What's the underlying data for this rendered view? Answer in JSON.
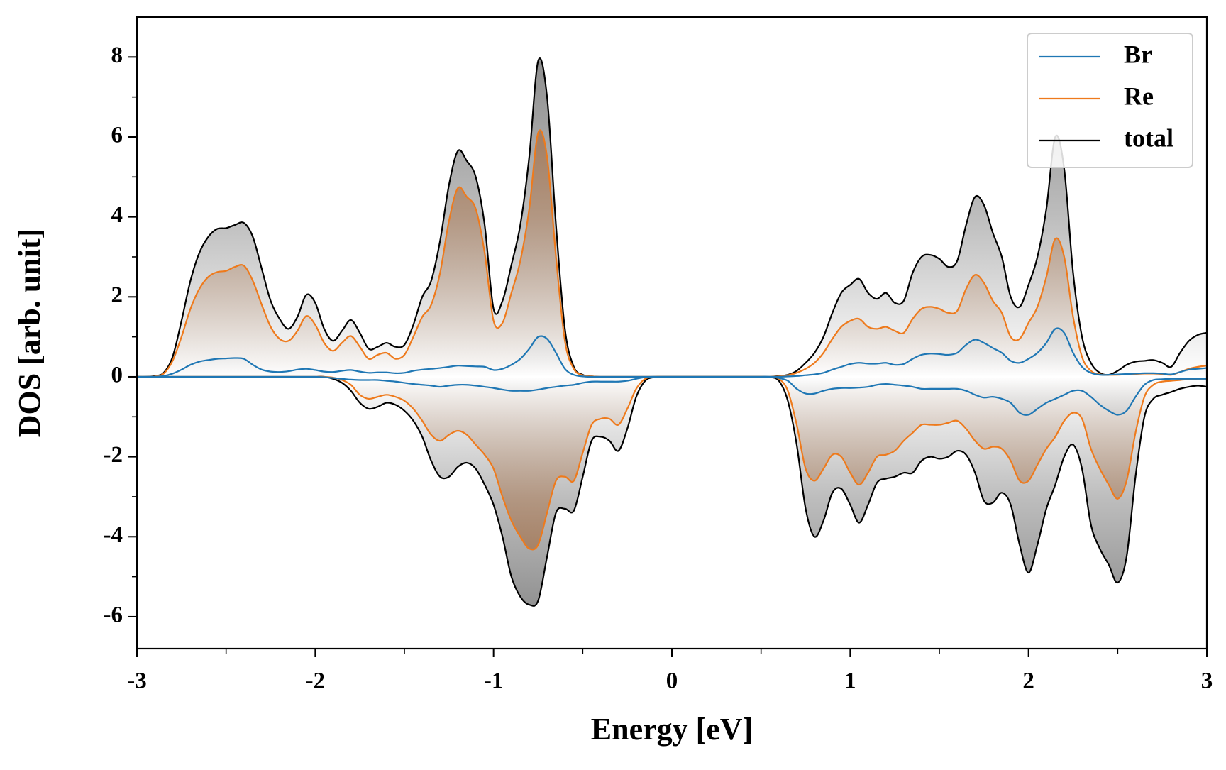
{
  "chart_data": {
    "type": "line",
    "xlabel": "Energy [eV]",
    "ylabel": "DOS [arb. unit]",
    "xlim": [
      -3,
      3
    ],
    "ylim": [
      -6.8,
      9
    ],
    "xticks": [
      -3,
      -2,
      -1,
      0,
      1,
      2,
      3
    ],
    "yticks": [
      -6,
      -4,
      -2,
      0,
      2,
      4,
      6,
      8
    ],
    "xminorticks": [
      -2.5,
      -1.5,
      -0.5,
      0.5,
      1.5,
      2.5
    ],
    "yminorticks": [
      -5,
      -3,
      -1,
      1,
      3,
      5,
      7
    ],
    "legend": "upper right",
    "fill": true,
    "x": [
      -3,
      -2.95,
      -2.9,
      -2.85,
      -2.8,
      -2.75,
      -2.7,
      -2.65,
      -2.6,
      -2.55,
      -2.5,
      -2.45,
      -2.4,
      -2.35,
      -2.3,
      -2.25,
      -2.2,
      -2.15,
      -2.1,
      -2.05,
      -2,
      -1.95,
      -1.9,
      -1.85,
      -1.8,
      -1.75,
      -1.7,
      -1.65,
      -1.6,
      -1.55,
      -1.5,
      -1.45,
      -1.4,
      -1.35,
      -1.3,
      -1.25,
      -1.2,
      -1.15,
      -1.1,
      -1.05,
      -1,
      -0.95,
      -0.9,
      -0.85,
      -0.8,
      -0.75,
      -0.7,
      -0.65,
      -0.6,
      -0.55,
      -0.5,
      -0.45,
      -0.4,
      -0.35,
      -0.3,
      -0.25,
      -0.2,
      -0.15,
      -0.1,
      -0.05,
      0,
      0.05,
      0.1,
      0.15,
      0.2,
      0.25,
      0.3,
      0.35,
      0.4,
      0.45,
      0.5,
      0.55,
      0.6,
      0.65,
      0.7,
      0.75,
      0.8,
      0.85,
      0.9,
      0.95,
      1,
      1.05,
      1.1,
      1.15,
      1.2,
      1.25,
      1.3,
      1.35,
      1.4,
      1.45,
      1.5,
      1.55,
      1.6,
      1.65,
      1.7,
      1.75,
      1.8,
      1.85,
      1.9,
      1.95,
      2,
      2.05,
      2.1,
      2.15,
      2.2,
      2.25,
      2.3,
      2.35,
      2.4,
      2.45,
      2.5,
      2.55,
      2.6,
      2.65,
      2.7,
      2.75,
      2.8,
      2.85,
      2.9,
      2.95,
      3
    ],
    "series": [
      {
        "name": "Br",
        "color": "#1f77b4",
        "fill_color": "#7fa6c4",
        "values": [
          0,
          0,
          0,
          0.02,
          0.08,
          0.18,
          0.3,
          0.38,
          0.42,
          0.45,
          0.46,
          0.47,
          0.45,
          0.3,
          0.18,
          0.13,
          0.12,
          0.14,
          0.18,
          0.2,
          0.17,
          0.13,
          0.12,
          0.15,
          0.17,
          0.13,
          0.1,
          0.11,
          0.11,
          0.09,
          0.1,
          0.15,
          0.18,
          0.2,
          0.22,
          0.25,
          0.28,
          0.27,
          0.26,
          0.25,
          0.17,
          0.2,
          0.3,
          0.45,
          0.7,
          1.0,
          0.95,
          0.6,
          0.2,
          0.05,
          0.01,
          0,
          0,
          0,
          0,
          0,
          0,
          0,
          0,
          0,
          0,
          0,
          0,
          0,
          0,
          0,
          0,
          0,
          0,
          0,
          0,
          0,
          0,
          0.01,
          0.02,
          0.04,
          0.06,
          0.1,
          0.18,
          0.25,
          0.32,
          0.35,
          0.33,
          0.33,
          0.35,
          0.3,
          0.32,
          0.45,
          0.55,
          0.58,
          0.57,
          0.55,
          0.6,
          0.8,
          0.93,
          0.85,
          0.72,
          0.6,
          0.4,
          0.35,
          0.45,
          0.6,
          0.85,
          1.2,
          1.1,
          0.6,
          0.25,
          0.1,
          0.05,
          0.05,
          0.06,
          0.07,
          0.08,
          0.09,
          0.09,
          0.08,
          0.06,
          0.12,
          0.18,
          0.2,
          0.22
        ],
        "values_down": [
          0,
          0,
          0,
          0,
          0,
          0,
          0,
          0,
          0,
          0,
          0,
          0,
          0,
          0,
          0,
          0,
          0,
          0,
          0,
          0,
          0,
          -0.01,
          -0.03,
          -0.05,
          -0.07,
          -0.08,
          -0.08,
          -0.08,
          -0.1,
          -0.12,
          -0.15,
          -0.18,
          -0.2,
          -0.22,
          -0.25,
          -0.22,
          -0.2,
          -0.2,
          -0.22,
          -0.25,
          -0.28,
          -0.32,
          -0.35,
          -0.35,
          -0.35,
          -0.32,
          -0.28,
          -0.25,
          -0.22,
          -0.2,
          -0.15,
          -0.12,
          -0.12,
          -0.12,
          -0.12,
          -0.1,
          -0.05,
          -0.01,
          0,
          0,
          0,
          0,
          0,
          0,
          0,
          0,
          0,
          0,
          0,
          0,
          0,
          0,
          -0.03,
          -0.1,
          -0.3,
          -0.42,
          -0.42,
          -0.35,
          -0.3,
          -0.28,
          -0.28,
          -0.27,
          -0.25,
          -0.2,
          -0.18,
          -0.2,
          -0.22,
          -0.25,
          -0.3,
          -0.3,
          -0.3,
          -0.3,
          -0.3,
          -0.35,
          -0.45,
          -0.52,
          -0.5,
          -0.55,
          -0.65,
          -0.9,
          -0.95,
          -0.8,
          -0.65,
          -0.55,
          -0.45,
          -0.35,
          -0.35,
          -0.5,
          -0.7,
          -0.85,
          -0.95,
          -0.85,
          -0.5,
          -0.2,
          -0.08,
          -0.06,
          -0.05,
          -0.05,
          -0.05,
          -0.05,
          -0.05
        ]
      },
      {
        "name": "Re",
        "color": "#ee7a1c",
        "fill_color": "#a5683a",
        "values": [
          0,
          0,
          0.01,
          0.08,
          0.4,
          1.0,
          1.7,
          2.2,
          2.5,
          2.62,
          2.65,
          2.75,
          2.78,
          2.4,
          1.8,
          1.25,
          0.95,
          0.9,
          1.15,
          1.52,
          1.3,
          0.85,
          0.65,
          0.85,
          1.02,
          0.75,
          0.45,
          0.55,
          0.6,
          0.45,
          0.55,
          1.0,
          1.5,
          1.8,
          2.6,
          3.9,
          4.72,
          4.5,
          4.2,
          3.1,
          1.4,
          1.35,
          2.1,
          2.9,
          4.2,
          6.1,
          5.5,
          3.0,
          0.9,
          0.2,
          0.04,
          0.01,
          0,
          0,
          0,
          0,
          0,
          0,
          0,
          0,
          0,
          0,
          0,
          0,
          0,
          0,
          0,
          0,
          0,
          0,
          0,
          0,
          0.01,
          0.04,
          0.1,
          0.2,
          0.35,
          0.6,
          0.95,
          1.25,
          1.4,
          1.45,
          1.25,
          1.2,
          1.25,
          1.15,
          1.1,
          1.45,
          1.7,
          1.75,
          1.7,
          1.6,
          1.65,
          2.2,
          2.55,
          2.35,
          1.9,
          1.6,
          1.0,
          0.95,
          1.35,
          1.75,
          2.5,
          3.45,
          3.0,
          1.5,
          0.5,
          0.15,
          0.06,
          0.05,
          0.05,
          0.06,
          0.07,
          0.08,
          0.08,
          0.07,
          0.05,
          0.12,
          0.2,
          0.25,
          0.28
        ],
        "values_down": [
          0,
          0,
          0,
          0,
          0,
          0,
          0,
          0,
          0,
          0,
          0,
          0,
          0,
          0,
          0,
          0,
          0,
          0,
          0,
          0,
          0,
          0,
          -0.02,
          -0.08,
          -0.2,
          -0.45,
          -0.55,
          -0.5,
          -0.45,
          -0.5,
          -0.6,
          -0.8,
          -1.1,
          -1.45,
          -1.6,
          -1.45,
          -1.35,
          -1.45,
          -1.7,
          -1.95,
          -2.3,
          -3.0,
          -3.6,
          -4.0,
          -4.3,
          -4.2,
          -3.4,
          -2.6,
          -2.5,
          -2.6,
          -1.9,
          -1.2,
          -1.05,
          -1.05,
          -1.2,
          -0.8,
          -0.3,
          -0.05,
          0,
          0,
          0,
          0,
          0,
          0,
          0,
          0,
          0,
          0,
          0,
          0,
          0,
          -0.01,
          -0.05,
          -0.35,
          -1.2,
          -2.3,
          -2.6,
          -2.3,
          -1.95,
          -2.0,
          -2.4,
          -2.7,
          -2.4,
          -2.0,
          -1.95,
          -1.85,
          -1.6,
          -1.4,
          -1.2,
          -1.2,
          -1.2,
          -1.15,
          -1.1,
          -1.3,
          -1.6,
          -1.8,
          -1.75,
          -1.8,
          -2.1,
          -2.6,
          -2.6,
          -2.2,
          -1.8,
          -1.5,
          -1.1,
          -0.9,
          -1.05,
          -1.8,
          -2.3,
          -2.7,
          -3.05,
          -2.6,
          -1.4,
          -0.5,
          -0.2,
          -0.12,
          -0.1,
          -0.08,
          -0.06,
          -0.05,
          -0.05
        ]
      },
      {
        "name": "total",
        "color": "#000000",
        "fill_color": "#7a7a7a",
        "values": [
          0,
          0,
          0.02,
          0.1,
          0.5,
          1.4,
          2.4,
          3.1,
          3.5,
          3.7,
          3.72,
          3.8,
          3.85,
          3.5,
          2.7,
          1.9,
          1.45,
          1.2,
          1.5,
          2.05,
          1.85,
          1.2,
          0.9,
          1.15,
          1.42,
          1.1,
          0.7,
          0.75,
          0.85,
          0.75,
          0.8,
          1.3,
          2.0,
          2.4,
          3.4,
          4.8,
          5.65,
          5.4,
          5.0,
          3.8,
          1.7,
          1.9,
          2.8,
          3.8,
          5.5,
          7.9,
          7.0,
          3.8,
          1.2,
          0.25,
          0.05,
          0.01,
          0,
          0,
          0,
          0,
          0,
          0,
          0,
          0,
          0,
          0,
          0,
          0,
          0,
          0,
          0,
          0,
          0,
          0,
          0,
          0,
          0.02,
          0.05,
          0.15,
          0.35,
          0.6,
          1.0,
          1.6,
          2.1,
          2.3,
          2.45,
          2.1,
          1.95,
          2.1,
          1.85,
          1.9,
          2.6,
          3.0,
          3.05,
          2.95,
          2.75,
          2.9,
          3.8,
          4.5,
          4.3,
          3.6,
          3.0,
          2.0,
          1.75,
          2.3,
          3.0,
          4.2,
          6.0,
          5.2,
          2.6,
          1.0,
          0.35,
          0.1,
          0.05,
          0.15,
          0.3,
          0.38,
          0.4,
          0.42,
          0.35,
          0.25,
          0.6,
          0.9,
          1.05,
          1.1
        ],
        "values_down": [
          0,
          0,
          0,
          0,
          0,
          0,
          0,
          0,
          0,
          0,
          0,
          0,
          0,
          0,
          0,
          0,
          0,
          0,
          0,
          0,
          0,
          0,
          -0.05,
          -0.15,
          -0.35,
          -0.65,
          -0.8,
          -0.75,
          -0.65,
          -0.7,
          -0.85,
          -1.1,
          -1.5,
          -2.1,
          -2.5,
          -2.5,
          -2.25,
          -2.15,
          -2.3,
          -2.7,
          -3.2,
          -4.0,
          -5.0,
          -5.5,
          -5.7,
          -5.6,
          -4.5,
          -3.4,
          -3.3,
          -3.35,
          -2.5,
          -1.6,
          -1.5,
          -1.6,
          -1.85,
          -1.3,
          -0.5,
          -0.1,
          -0.01,
          0,
          0,
          0,
          0,
          0,
          0,
          0,
          0,
          0,
          0,
          0,
          0,
          -0.01,
          -0.1,
          -0.6,
          -1.7,
          -3.3,
          -4.0,
          -3.6,
          -2.9,
          -2.8,
          -3.2,
          -3.65,
          -3.2,
          -2.65,
          -2.55,
          -2.5,
          -2.4,
          -2.4,
          -2.1,
          -2.0,
          -2.05,
          -2.0,
          -1.85,
          -1.95,
          -2.4,
          -3.1,
          -3.15,
          -2.9,
          -3.2,
          -4.2,
          -4.9,
          -4.2,
          -3.3,
          -2.7,
          -2.0,
          -1.7,
          -2.3,
          -3.7,
          -4.3,
          -4.7,
          -5.15,
          -4.5,
          -2.5,
          -1.0,
          -0.55,
          -0.45,
          -0.38,
          -0.3,
          -0.25,
          -0.22,
          -0.25
        ]
      }
    ]
  }
}
